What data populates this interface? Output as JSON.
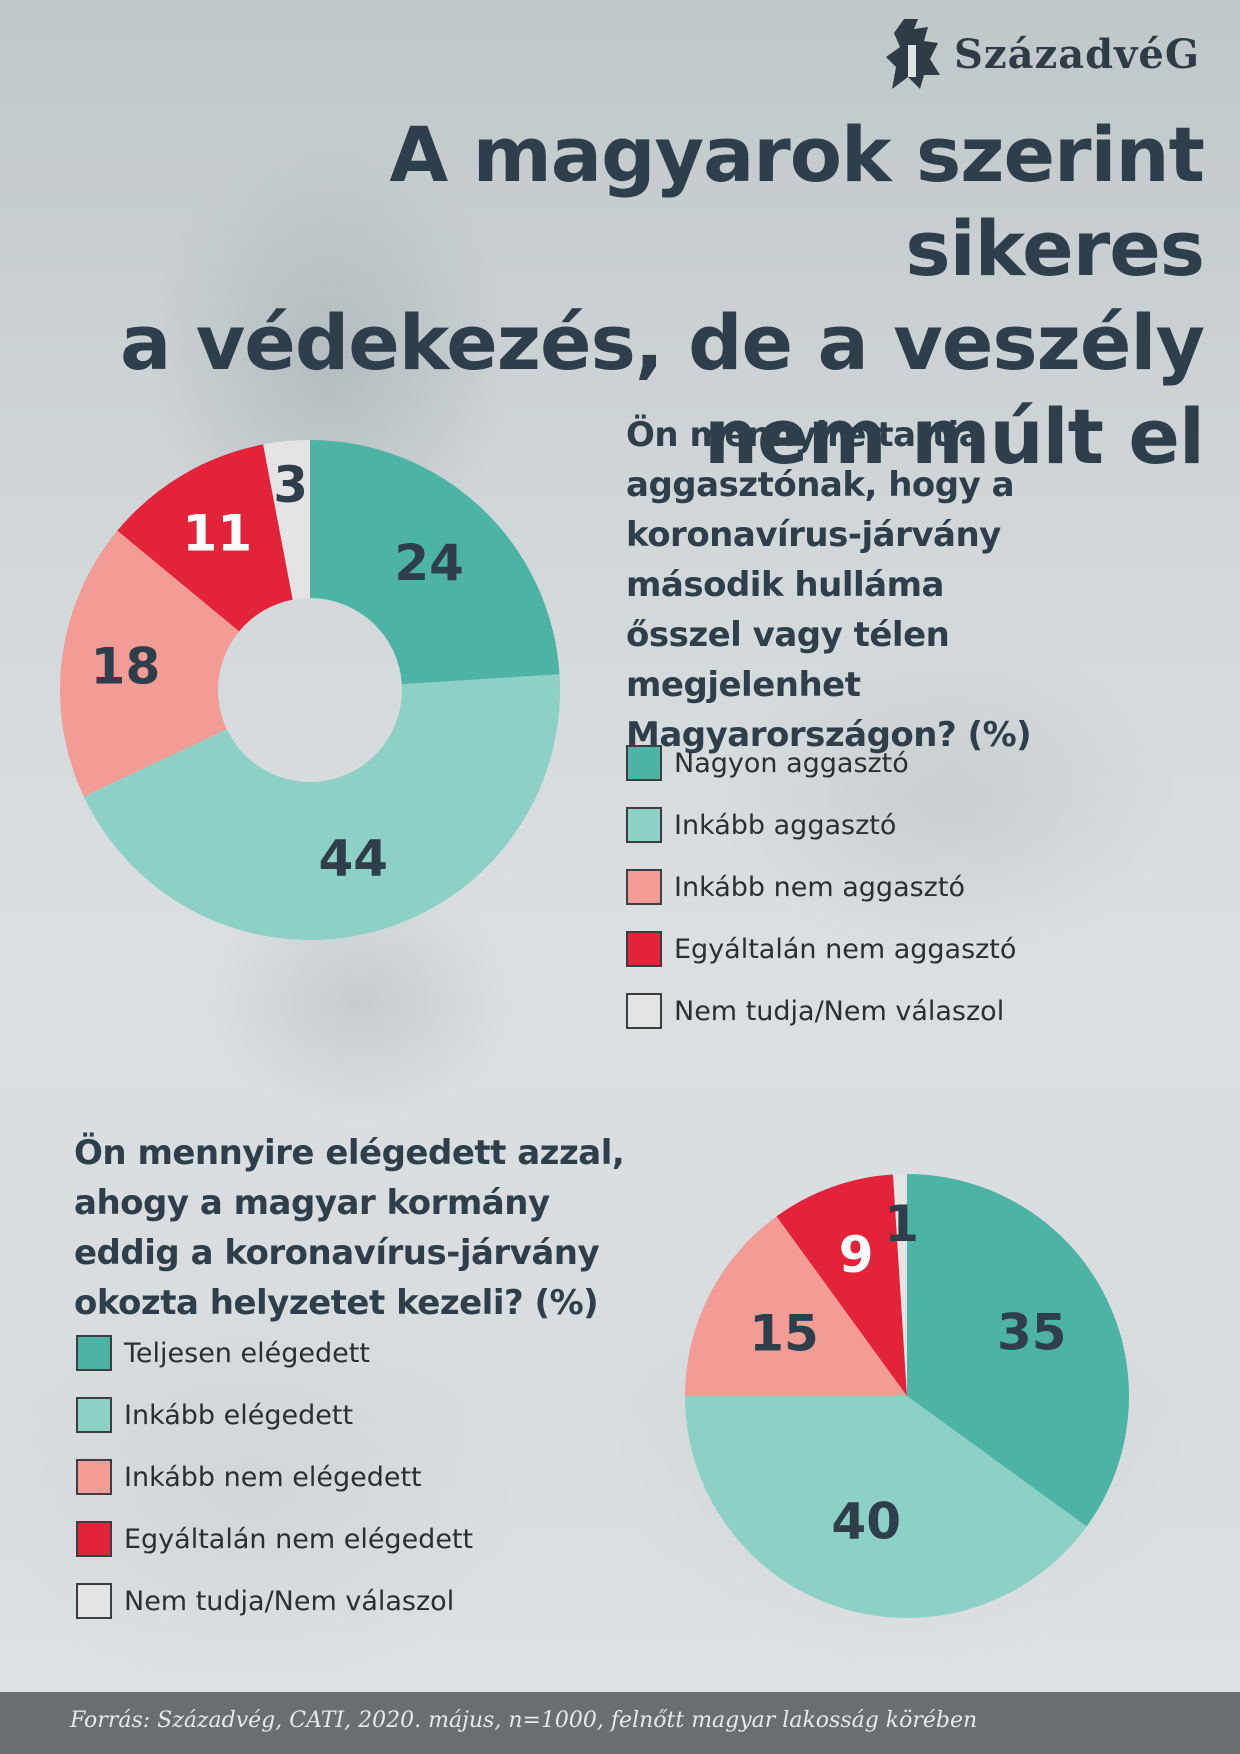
{
  "brand": {
    "name": "SzázadvéG"
  },
  "title": {
    "lines": [
      "A magyarok szerint sikeres",
      "a védekezés, de a veszély",
      "nem múlt el"
    ]
  },
  "colors": {
    "dark_teal": "#4cb3a5",
    "light_teal": "#8dd1c6",
    "pink": "#f39b95",
    "red": "#e3233a",
    "grey": "#e4e4e4",
    "text_dark": "#2e3f4b"
  },
  "chart_data": [
    {
      "type": "pie",
      "style": "donut",
      "question": "Ön mennyire tartja aggasztónak, hogy a koronavírus-járvány második hulláma ősszel vagy télen megjelenhet Magyarországon? (%)",
      "categories": [
        "Nagyon aggasztó",
        "Inkább aggasztó",
        "Inkább nem aggasztó",
        "Egyáltalán nem aggasztó",
        "Nem tudja/Nem válaszol"
      ],
      "values": [
        24,
        44,
        18,
        11,
        3
      ],
      "colors": [
        "#4cb3a5",
        "#8dd1c6",
        "#f39b95",
        "#e3233a",
        "#e4e4e4"
      ],
      "label_colors": [
        "#2e3f4b",
        "#2e3f4b",
        "#2e3f4b",
        "#ffffff",
        "#2e3f4b"
      ],
      "legend_position": "right"
    },
    {
      "type": "pie",
      "question": "Ön mennyire elégedett azzal, ahogy a magyar kormány eddig a koronavírus-járvány okozta helyzetet kezeli? (%)",
      "categories": [
        "Teljesen elégedett",
        "Inkább elégedett",
        "Inkább nem elégedett",
        "Egyáltalán nem elégedett",
        "Nem tudja/Nem válaszol"
      ],
      "values": [
        35,
        40,
        15,
        9,
        1
      ],
      "colors": [
        "#4cb3a5",
        "#8dd1c6",
        "#f39b95",
        "#e3233a",
        "#e4e4e4"
      ],
      "label_colors": [
        "#2e3f4b",
        "#2e3f4b",
        "#2e3f4b",
        "#ffffff",
        "#2e3f4b"
      ],
      "legend_position": "left"
    }
  ],
  "footer": {
    "source": "Forrás: Századvég, CATI, 2020. május, n=1000, felnőtt magyar lakosság körében"
  }
}
